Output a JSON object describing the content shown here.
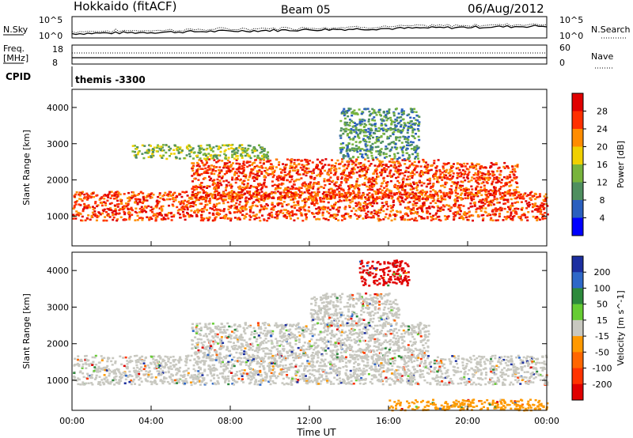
{
  "header": {
    "station": "Hokkaido (fitACF)",
    "beam": "Beam 05",
    "date": "06/Aug/2012"
  },
  "strip_labels": {
    "nsky": "N.Sky",
    "nsearch": "N.Search",
    "nsky_tick_hi": "10^5",
    "nsky_tick_lo": "10^0",
    "freq_line1": "Freq.",
    "freq_line2": "[MHz]",
    "freq_tick_hi": "18",
    "freq_tick_lo": "8",
    "nave": "Nave",
    "nave_tick_hi": "60",
    "nave_tick_lo": "0",
    "cpid": "CPID",
    "cpid_value": "themis -3300"
  },
  "chart_data": [
    {
      "type": "heatmap",
      "panel": "power",
      "xlabel": "Time UT",
      "ylabel": "Slant Range [km]",
      "x_ticks": [
        "00:00",
        "04:00",
        "08:00",
        "12:00",
        "16:00",
        "20:00",
        "00:00"
      ],
      "xlim_hours": [
        0,
        24
      ],
      "y_ticks": [
        1000,
        2000,
        3000,
        4000
      ],
      "ylim": [
        180,
        4500
      ],
      "colorbar": {
        "label": "Power [dB]",
        "ticks": [
          "4",
          "8",
          "12",
          "16",
          "20",
          "24",
          "28"
        ],
        "colors": [
          "#0000ff",
          "#2a5fbf",
          "#4f8f5f",
          "#78b43c",
          "#f0d000",
          "#ff8c00",
          "#ff3000",
          "#e00000"
        ]
      },
      "regions": [
        {
          "t0": 0.0,
          "t1": 24.0,
          "r0": 900,
          "r1": 1700,
          "level": 6,
          "desc": "main band"
        },
        {
          "t0": 6.0,
          "t1": 18.5,
          "r0": 1500,
          "r1": 2600,
          "level": 6,
          "desc": "upper band"
        },
        {
          "t0": 3.0,
          "t1": 10.0,
          "r0": 2600,
          "r1": 3000,
          "level": 3
        },
        {
          "t0": 13.5,
          "t1": 17.5,
          "r0": 2600,
          "r1": 4000,
          "level": 2
        },
        {
          "t0": 18.5,
          "t1": 22.5,
          "r0": 1600,
          "r1": 2500,
          "level": 6
        }
      ]
    },
    {
      "type": "heatmap",
      "panel": "velocity",
      "xlabel": "Time UT",
      "ylabel": "Slant Range [km]",
      "x_ticks": [
        "00:00",
        "04:00",
        "08:00",
        "12:00",
        "16:00",
        "20:00",
        "00:00"
      ],
      "xlim_hours": [
        0,
        24
      ],
      "y_ticks": [
        1000,
        2000,
        3000,
        4000
      ],
      "ylim": [
        180,
        4500
      ],
      "colorbar": {
        "label": "Velocity [m s^-1]",
        "ticks": [
          "200",
          "100",
          "50",
          "15",
          "-15",
          "-50",
          "-100",
          "-200"
        ],
        "colors": [
          "#1c2fa0",
          "#2e68c8",
          "#2d8a3c",
          "#66cc33",
          "#c8c8c0",
          "#ff9900",
          "#ff6600",
          "#ff3300",
          "#e00000"
        ]
      },
      "regions": [
        {
          "t0": 0.0,
          "t1": 24.0,
          "r0": 900,
          "r1": 1700,
          "value_class": "ground"
        },
        {
          "t0": 6.0,
          "t1": 18.0,
          "r0": 1600,
          "r1": 2600,
          "value_class": "ground"
        },
        {
          "t0": 12.0,
          "t1": 16.5,
          "r0": 2500,
          "r1": 3400,
          "value_class": "ground"
        },
        {
          "t0": 16.0,
          "t1": 24.0,
          "r0": 200,
          "r1": 500,
          "value_class": "neg-50"
        },
        {
          "t0": 14.5,
          "t1": 17.0,
          "r0": 3600,
          "r1": 4300,
          "value_class": "neg-200"
        }
      ]
    }
  ]
}
